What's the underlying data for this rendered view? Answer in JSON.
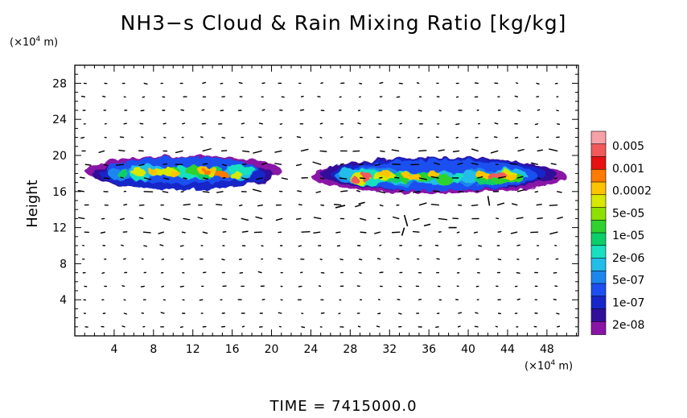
{
  "title": "NH3−s Cloud & Rain Mixing Ratio [kg/kg]",
  "footer": {
    "time_text": "TIME  =  7415000.0"
  },
  "chart_data": {
    "type": "heatmap",
    "title": "NH3−s Cloud & Rain Mixing Ratio [kg/kg]",
    "xlabel": "",
    "ylabel": "Height",
    "x_unit": "(×10⁴ m)",
    "y_unit": "(×10⁴ m)",
    "x_ticks": [
      4,
      8,
      12,
      16,
      20,
      24,
      28,
      32,
      36,
      40,
      44,
      48
    ],
    "y_ticks": [
      4,
      8,
      12,
      16,
      20,
      24,
      28
    ],
    "xlim": [
      0,
      51.2
    ],
    "ylim": [
      0,
      30
    ],
    "grid": false,
    "colorbar": {
      "labels": [
        "0.005",
        "0.001",
        "0.0002",
        "5e-05",
        "1e-05",
        "2e-06",
        "5e-07",
        "1e-07",
        "2e-08"
      ],
      "colors": [
        "#f7a0a8",
        "#f25a5a",
        "#e81010",
        "#ff7a00",
        "#ffc400",
        "#d8e800",
        "#8ee000",
        "#2fd22f",
        "#0ccf6a",
        "#19e0c0",
        "#22bde8",
        "#1c86ef",
        "#1d4ff0",
        "#1626c8",
        "#30109a",
        "#8a14a6"
      ]
    },
    "cloud_layers": [
      {
        "name": "west",
        "x_start": 1,
        "x_end": 21,
        "y_bottom": 16.5,
        "y_top": 19.8,
        "max_value": "0.0002"
      },
      {
        "name": "east",
        "x_start": 24,
        "x_end": 50,
        "y_bottom": 15.8,
        "y_top": 19.6,
        "max_value": "0.001"
      }
    ]
  }
}
